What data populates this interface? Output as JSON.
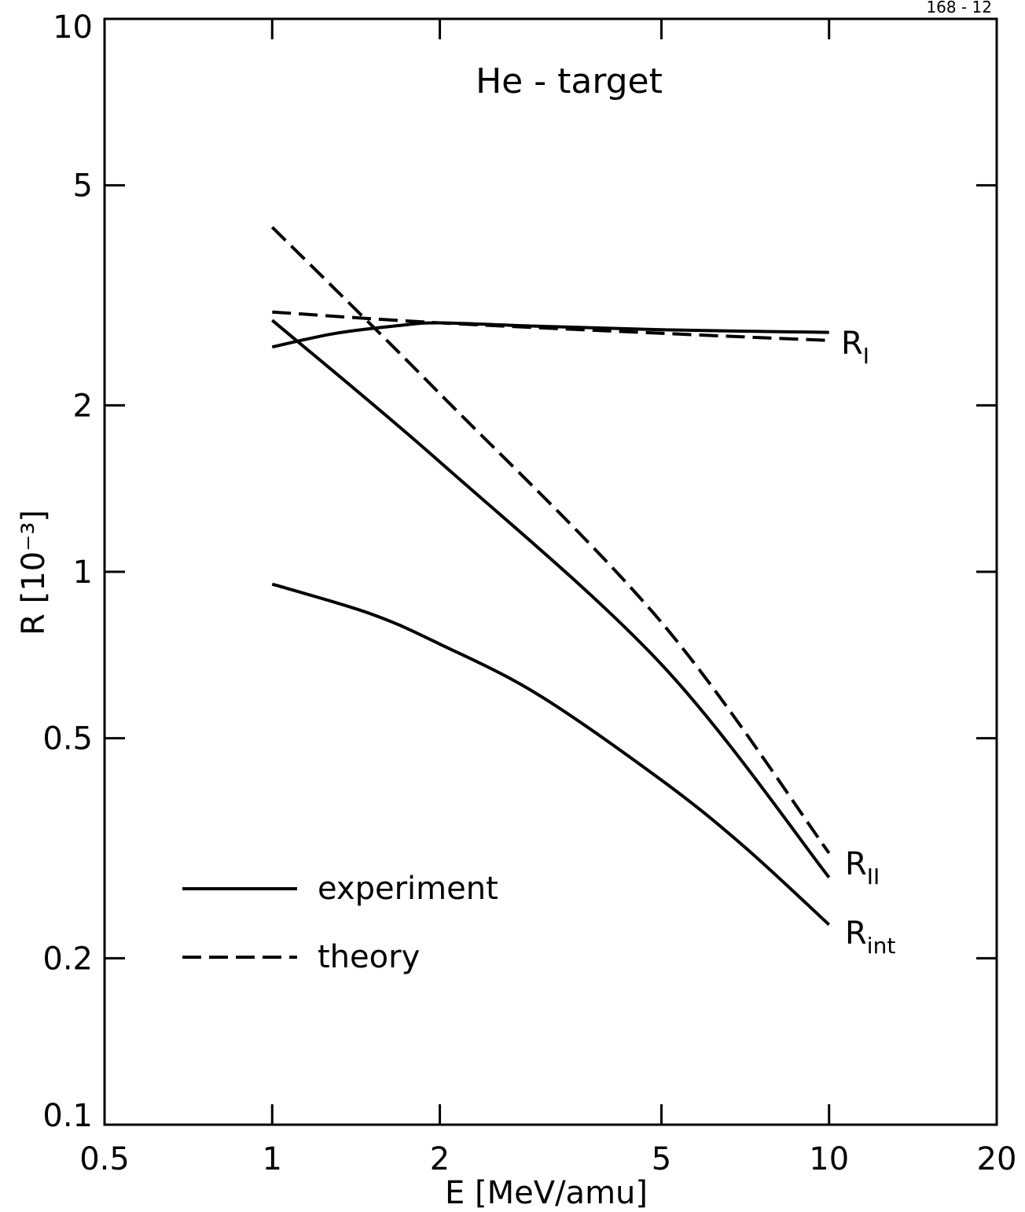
{
  "figure_id": "168 - 12",
  "chart_data": {
    "type": "line",
    "title": "He - target",
    "xlabel": "E [MeV/amu]",
    "ylabel": "R [10⁻³]",
    "xscale": "log",
    "yscale": "log",
    "xlim": [
      0.5,
      20
    ],
    "ylim": [
      0.1,
      10
    ],
    "xticks": [
      0.5,
      1,
      2,
      5,
      10,
      20
    ],
    "xtick_labels": [
      "0.5",
      "1",
      "2",
      "5",
      "10",
      "20"
    ],
    "yticks": [
      0.1,
      0.2,
      0.5,
      1,
      2,
      5,
      10
    ],
    "ytick_labels": [
      "0.1",
      "0.2",
      "0.5",
      "1",
      "2",
      "5",
      "10"
    ],
    "grid": false,
    "legend": {
      "placement": "lower-left",
      "entries": [
        {
          "label": "experiment",
          "style": "solid"
        },
        {
          "label": "theory",
          "style": "dashed"
        }
      ]
    },
    "curve_labels": {
      "R_I": {
        "base": "R",
        "sub": "I"
      },
      "R_II": {
        "base": "R",
        "sub": "II"
      },
      "R_int": {
        "base": "R",
        "sub": "int"
      }
    },
    "series": [
      {
        "label_key": "R_I",
        "style": "solid",
        "points": [
          [
            1,
            2.55
          ],
          [
            1.3,
            2.7
          ],
          [
            1.7,
            2.79
          ],
          [
            2,
            2.82
          ],
          [
            3,
            2.78
          ],
          [
            5,
            2.74
          ],
          [
            10,
            2.71
          ]
        ]
      },
      {
        "label_key": "R_I",
        "style": "dashed",
        "points": [
          [
            1,
            2.95
          ],
          [
            2,
            2.82
          ],
          [
            5,
            2.7
          ],
          [
            10,
            2.62
          ]
        ]
      },
      {
        "label_key": "R_II",
        "style": "solid",
        "points": [
          [
            1,
            2.85
          ],
          [
            2,
            1.58
          ],
          [
            5,
            0.68
          ],
          [
            10,
            0.28
          ]
        ]
      },
      {
        "label_key": "R_II",
        "style": "dashed",
        "points": [
          [
            1,
            4.2
          ],
          [
            2,
            2.1
          ],
          [
            5,
            0.81
          ],
          [
            10,
            0.31
          ]
        ]
      },
      {
        "label_key": "R_int",
        "style": "solid",
        "points": [
          [
            1,
            0.95
          ],
          [
            1.5,
            0.84
          ],
          [
            2,
            0.74
          ],
          [
            3,
            0.6
          ],
          [
            5,
            0.42
          ],
          [
            7,
            0.32
          ],
          [
            10,
            0.23
          ]
        ]
      }
    ]
  }
}
